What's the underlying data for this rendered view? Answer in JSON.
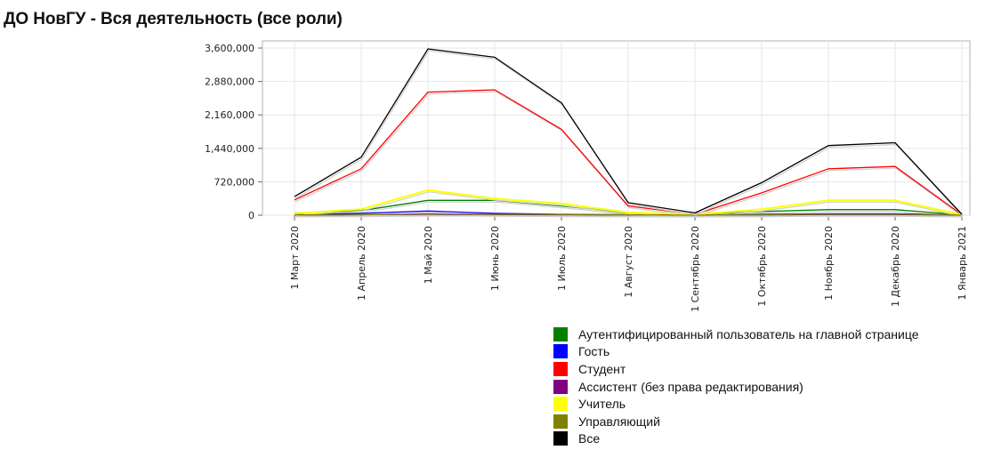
{
  "chart_data": {
    "type": "line",
    "title": "ДО НовГУ - Вся деятельность (все роли)",
    "categories": [
      "1 Март 2020",
      "1 Апрель 2020",
      "1 Май 2020",
      "1 Июнь 2020",
      "1 Июль 2020",
      "1 Август 2020",
      "1 Сентябрь 2020",
      "1 Октябрь 2020",
      "1 Ноябрь 2020",
      "1 Декабрь 2020",
      "1 Январь 2021"
    ],
    "y_ticks": [
      "3,600,000",
      "2,880,000",
      "2,160,000",
      "1,440,000",
      "720,000",
      "0"
    ],
    "y_tick_values": [
      3600000,
      2880000,
      2160000,
      1440000,
      720000,
      0
    ],
    "ylim": [
      0,
      3600000
    ],
    "grid": true,
    "legend_position": "bottom-right",
    "series": [
      {
        "name": "Аутентифицированный пользователь на главной странице",
        "color": "#008000",
        "values": [
          50000,
          100000,
          320000,
          320000,
          200000,
          50000,
          20000,
          80000,
          120000,
          120000,
          10000
        ]
      },
      {
        "name": "Гость",
        "color": "#0000ff",
        "values": [
          10000,
          40000,
          90000,
          40000,
          20000,
          10000,
          5000,
          20000,
          30000,
          30000,
          3000
        ]
      },
      {
        "name": "Студент",
        "color": "#ff0000",
        "values": [
          330000,
          1000000,
          2650000,
          2700000,
          1850000,
          200000,
          20000,
          480000,
          1000000,
          1050000,
          10000
        ]
      },
      {
        "name": "Ассистент (без права редактирования)",
        "color": "#800080",
        "values": [
          5000,
          10000,
          20000,
          15000,
          10000,
          3000,
          2000,
          8000,
          15000,
          15000,
          1000
        ]
      },
      {
        "name": "Учитель",
        "color": "#ffff00",
        "values": [
          40000,
          130000,
          540000,
          360000,
          250000,
          60000,
          15000,
          130000,
          320000,
          320000,
          10000
        ]
      },
      {
        "name": "Управляющий",
        "color": "#808000",
        "values": [
          5000,
          10000,
          30000,
          20000,
          15000,
          5000,
          2000,
          10000,
          20000,
          20000,
          1000
        ]
      },
      {
        "name": "Все",
        "color": "#000000",
        "values": [
          400000,
          1250000,
          3580000,
          3400000,
          2420000,
          270000,
          50000,
          700000,
          1500000,
          1560000,
          20000
        ]
      }
    ]
  }
}
